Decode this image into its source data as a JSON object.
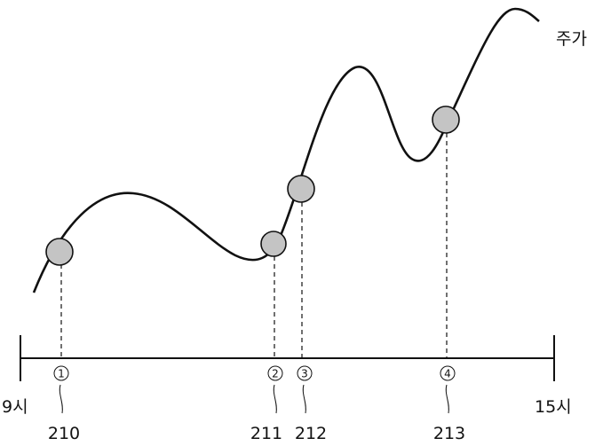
{
  "curve_label": "주가",
  "axis": {
    "start_label": "9시",
    "end_label": "15시"
  },
  "points": [
    {
      "badge": "1",
      "ref": "210"
    },
    {
      "badge": "2",
      "ref": "211"
    },
    {
      "badge": "3",
      "ref": "212"
    },
    {
      "badge": "4",
      "ref": "213"
    }
  ]
}
